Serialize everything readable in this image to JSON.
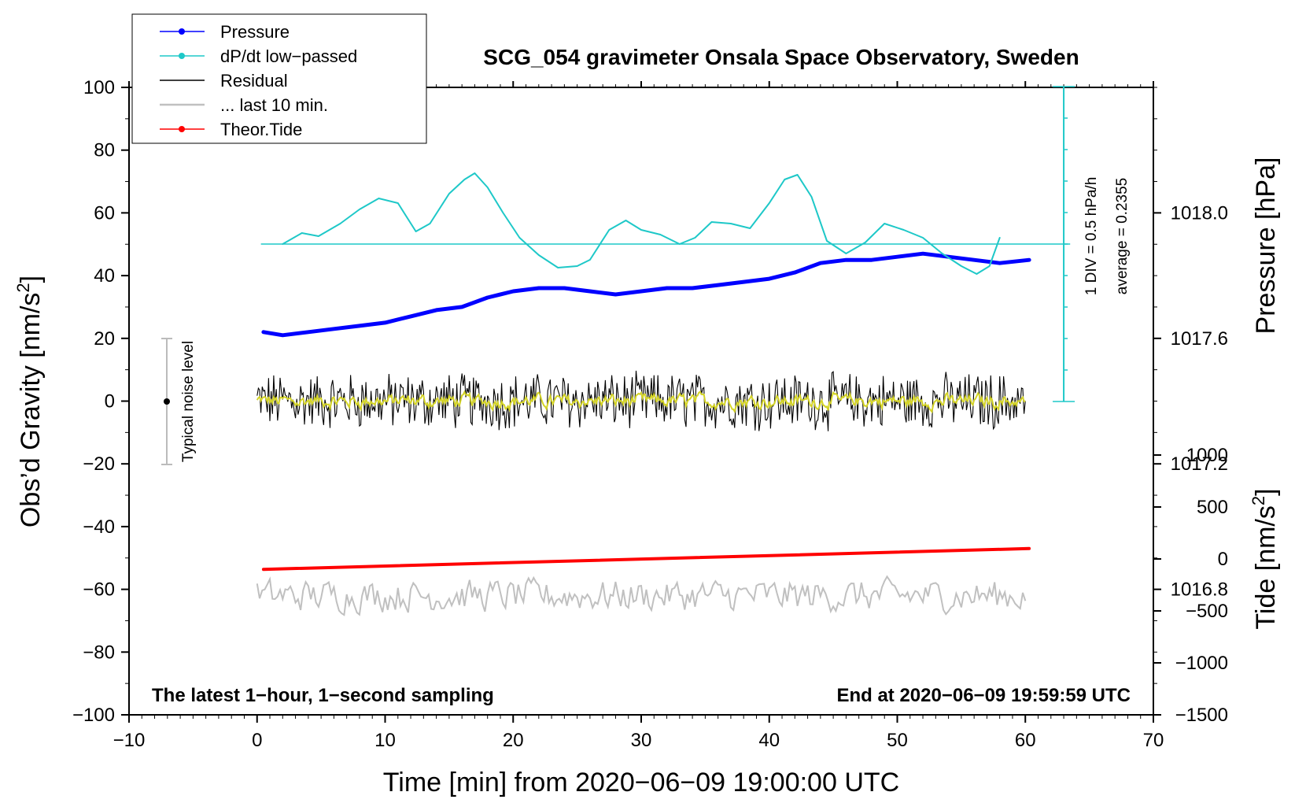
{
  "chart_data": {
    "type": "line",
    "title": "SCG_054 gravimeter Onsala Space Observatory, Sweden",
    "xlabel": "Time [min] from 2020−06−09 19:00:00 UTC",
    "ylabel_left_main": "Obs’d Gravity [nm/s",
    "ylabel_left_sup": "2",
    "ylabel_left_tail": "]",
    "ylabel_right_pressure": "Pressure [hPa]",
    "ylabel_right_tide_main": "Tide [nm/s",
    "ylabel_right_tide_sup": "2",
    "ylabel_right_tide_tail": "]",
    "annotation_left": "The latest 1−hour, 1−second sampling",
    "annotation_right": "End at 2020−06−09 19:59:59 UTC",
    "noise_label": "Typical noise level",
    "ddt_scale_label": "1 DIV = 0.5 hPa/h",
    "ddt_average_label": "average = 0.2355",
    "xlim": [
      -10,
      70
    ],
    "ylim": [
      -100,
      100
    ],
    "pressure_lim": [
      1016.4,
      1018.4
    ],
    "tide_lim": [
      -1500,
      1500
    ],
    "x_ticks": [
      "−10",
      "0",
      "10",
      "20",
      "30",
      "40",
      "50",
      "60",
      "70"
    ],
    "x_tick_values": [
      -10,
      0,
      10,
      20,
      30,
      40,
      50,
      60,
      70
    ],
    "y_ticks": [
      "100",
      "80",
      "60",
      "40",
      "20",
      "0",
      "−20",
      "−40",
      "−60",
      "−80",
      "−100"
    ],
    "y_tick_values": [
      100,
      80,
      60,
      40,
      20,
      0,
      -20,
      -40,
      -60,
      -80,
      -100
    ],
    "pressure_ticks": [
      "1018.0",
      "1017.6",
      "1017.2",
      "1016.8"
    ],
    "pressure_tick_values": [
      1018.0,
      1017.6,
      1017.2,
      1016.8
    ],
    "tide_ticks": [
      "1000",
      "500",
      "0",
      "−500",
      "−1000",
      "−1500"
    ],
    "tide_tick_values": [
      1000,
      500,
      0,
      -500,
      -1000,
      -1500
    ],
    "legend": [
      {
        "label": "Pressure",
        "color": "#0000ff",
        "marker": true
      },
      {
        "label": "dP/dt low−passed",
        "color": "#1ec8c8",
        "marker": true
      },
      {
        "label": "Residual",
        "color": "#000000",
        "marker": false
      },
      {
        "label": "... last 10 min.",
        "color": "#c0c0c0",
        "marker": false
      },
      {
        "label": "Theor.Tide",
        "color": "#ff0000",
        "marker": true
      }
    ],
    "legend_position": "top-left",
    "series": [
      {
        "name": "Pressure",
        "axis": "pressure",
        "color": "#0000ff",
        "x": [
          0.5,
          2,
          4,
          6,
          8,
          10,
          12,
          14,
          16,
          18,
          20,
          22,
          24,
          26,
          28,
          30,
          32,
          34,
          36,
          38,
          40,
          42,
          44,
          46,
          48,
          50,
          52,
          54,
          56,
          58,
          60.3
        ],
        "y": [
          1017.62,
          1017.61,
          1017.62,
          1017.63,
          1017.64,
          1017.65,
          1017.67,
          1017.69,
          1017.7,
          1017.73,
          1017.75,
          1017.76,
          1017.76,
          1017.75,
          1017.74,
          1017.75,
          1017.76,
          1017.76,
          1017.77,
          1017.78,
          1017.79,
          1017.81,
          1017.84,
          1017.85,
          1017.85,
          1017.86,
          1017.87,
          1017.86,
          1017.85,
          1017.84,
          1017.85
        ]
      },
      {
        "name": "dP/dt low-passed",
        "axis": "ddt",
        "color": "#1ec8c8",
        "x": [
          2,
          3.5,
          4.8,
          6.5,
          8,
          9.5,
          11,
          12.4,
          13.5,
          15,
          16.2,
          17,
          18,
          19.2,
          20.5,
          22,
          23.5,
          25,
          26,
          27.5,
          28.8,
          30,
          31.5,
          33,
          34.2,
          35.5,
          37,
          38.5,
          40,
          41.2,
          42.2,
          43.3,
          44.5,
          46,
          47.5,
          49,
          50.5,
          52,
          53.5,
          55,
          56.2,
          57.2,
          58
        ],
        "y": [
          0.5,
          0.535,
          0.525,
          0.565,
          0.61,
          0.645,
          0.63,
          0.54,
          0.565,
          0.66,
          0.705,
          0.725,
          0.68,
          0.6,
          0.52,
          0.465,
          0.425,
          0.43,
          0.45,
          0.545,
          0.575,
          0.545,
          0.53,
          0.5,
          0.52,
          0.57,
          0.565,
          0.55,
          0.63,
          0.705,
          0.72,
          0.65,
          0.51,
          0.47,
          0.505,
          0.565,
          0.545,
          0.52,
          0.47,
          0.43,
          0.405,
          0.43,
          0.52
        ]
      },
      {
        "name": "Theor.Tide",
        "axis": "tide",
        "color": "#ff0000",
        "x": [
          0.5,
          60.3
        ],
        "y": [
          -100,
          100
        ]
      }
    ],
    "residual_band": {
      "center": 0,
      "amplitude_nm_s2": 8,
      "x_range": [
        0,
        60
      ]
    },
    "residual_last10_offset": -62
  }
}
